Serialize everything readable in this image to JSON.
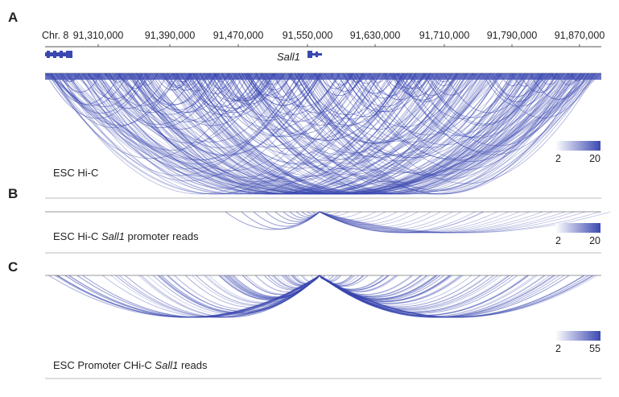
{
  "panels": {
    "a_letter": "A",
    "b_letter": "B",
    "c_letter": "C"
  },
  "axis": {
    "chromosome": "Chr. 8",
    "ticks": [
      "91,310,000",
      "91,390,000",
      "91,470,000",
      "91,550,000",
      "91,630,000",
      "91,710,000",
      "91,790,000",
      "91,870,000"
    ],
    "gene": "Sall1"
  },
  "tracks": [
    {
      "label": "ESC Hi-C",
      "legend_min": "2",
      "legend_max": "20"
    },
    {
      "label_prefix": "ESC Hi-C ",
      "label_gene": "Sall1",
      "label_suffix": " promoter reads",
      "legend_min": "2",
      "legend_max": "20"
    },
    {
      "label_prefix": "ESC Promoter CHi-C ",
      "label_gene": "Sall1",
      "label_suffix": " reads",
      "legend_min": "2",
      "legend_max": "55"
    }
  ],
  "colors": {
    "arc": "#3b48b0",
    "baseline": "#999999"
  }
}
